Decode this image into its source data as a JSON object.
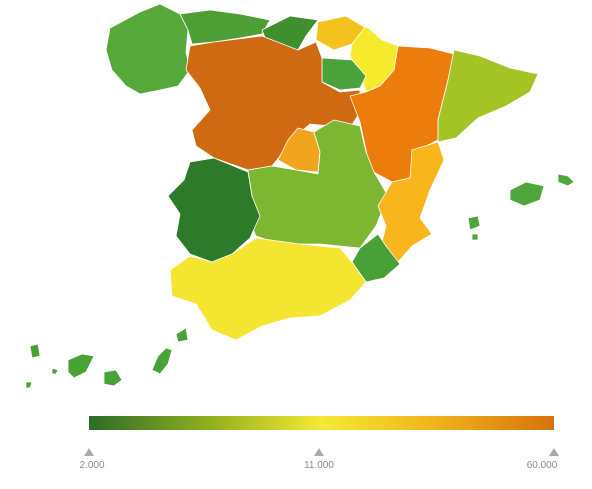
{
  "map": {
    "regions": [
      {
        "name": "Galicia",
        "color": "#56a83a"
      },
      {
        "name": "Asturias",
        "color": "#4e9e36"
      },
      {
        "name": "Cantabria",
        "color": "#3f8f2f"
      },
      {
        "name": "Pais Vasco",
        "color": "#f4c21c"
      },
      {
        "name": "Navarra",
        "color": "#f6ea2c"
      },
      {
        "name": "La Rioja",
        "color": "#4aa23a"
      },
      {
        "name": "Aragon",
        "color": "#d06a12"
      },
      {
        "name": "Cataluna",
        "color": "#ec7c0c"
      },
      {
        "name": "Castilla y Leon",
        "color": "#a3c424"
      },
      {
        "name": "Madrid",
        "color": "#f1a41e"
      },
      {
        "name": "Castilla-La Mancha",
        "color": "#7db631"
      },
      {
        "name": "Extremadura",
        "color": "#2d7a2b"
      },
      {
        "name": "Comunidad Valenciana",
        "color": "#f8b51c"
      },
      {
        "name": "Region de Murcia",
        "color": "#48a036"
      },
      {
        "name": "Andalucia",
        "color": "#f4e630"
      },
      {
        "name": "Islas Baleares",
        "color": "#4fa63a"
      },
      {
        "name": "Canarias",
        "color": "#48a336"
      }
    ]
  },
  "legend": {
    "gradient": [
      "#2d6b28",
      "#8dad1e",
      "#f4e934",
      "#f0b21c",
      "#d9700e"
    ],
    "ticks": [
      "2.000",
      "11.000",
      "60.000"
    ],
    "tick_fractions": [
      0,
      0.5,
      1
    ]
  }
}
